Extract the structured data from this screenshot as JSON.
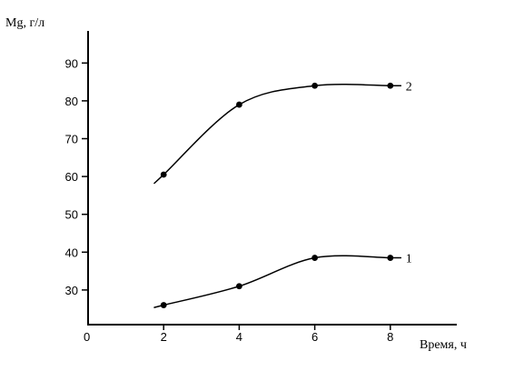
{
  "chart_data": {
    "type": "line",
    "ylabel": "Mg, г/л",
    "xlabel": "Время, ч",
    "x_origin_label": "0",
    "xlim": [
      0,
      10
    ],
    "ylim": [
      20,
      100
    ],
    "x_ticks": [
      2,
      4,
      6,
      8
    ],
    "y_ticks": [
      30,
      40,
      50,
      60,
      70,
      80,
      90
    ],
    "grid": false,
    "series": [
      {
        "name": "1",
        "x": [
          2,
          4,
          6,
          8
        ],
        "y": [
          26,
          31,
          38.5,
          38.5
        ]
      },
      {
        "name": "2",
        "x": [
          2,
          4,
          6,
          8
        ],
        "y": [
          60.5,
          79,
          84,
          84
        ]
      }
    ]
  }
}
